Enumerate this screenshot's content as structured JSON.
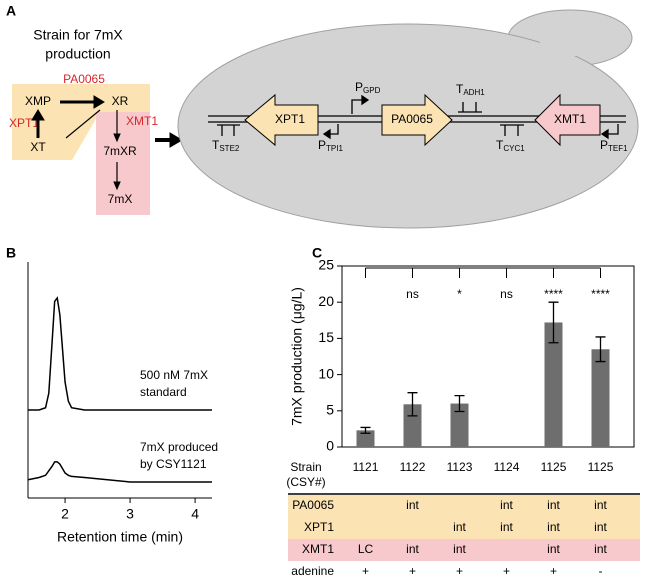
{
  "panel_labels": [
    "A",
    "B",
    "C"
  ],
  "panel_a": {
    "title": [
      "Strain for 7mX",
      "production"
    ],
    "metabolites": [
      "XMP",
      "XR",
      "XT",
      "7mXR",
      "7mX"
    ],
    "enzymes": [
      "PA0065",
      "XPT1",
      "XMT1"
    ],
    "genes": [
      "XPT1",
      "PA0065",
      "XMT1"
    ],
    "elements": [
      {
        "main": "T",
        "sub": "STE2"
      },
      {
        "main": "P",
        "sub": "TPI1"
      },
      {
        "main": "P",
        "sub": "GPD"
      },
      {
        "main": "T",
        "sub": "ADH1"
      },
      {
        "main": "T",
        "sub": "CYC1"
      },
      {
        "main": "P",
        "sub": "TEF1"
      }
    ]
  },
  "chart_data": [
    {
      "type": "line",
      "xlabel": "Retention time (min)",
      "x": [
        1.43,
        1.6,
        1.7,
        1.75,
        1.8,
        1.84,
        1.88,
        1.92,
        1.96,
        2.0,
        2.05,
        2.1,
        2.3,
        3,
        4.26
      ],
      "xlim": [
        1.43,
        4.26
      ],
      "xticks": [
        2,
        3,
        4
      ],
      "series": [
        {
          "name": [
            "500 nM 7mX",
            "standard"
          ],
          "color": "#000000",
          "values": [
            0,
            0,
            0.02,
            0.15,
            0.6,
            0.97,
            1.0,
            0.85,
            0.55,
            0.25,
            0.08,
            0.02,
            0,
            0,
            0
          ]
        },
        {
          "name": [
            "7mX produced",
            "by CSY1121"
          ],
          "color": "#000000",
          "values": [
            0.02,
            0.04,
            0.06,
            0.1,
            0.14,
            0.18,
            0.18,
            0.16,
            0.12,
            0.08,
            0.06,
            0.05,
            0.04,
            0,
            0
          ]
        }
      ]
    },
    {
      "type": "bar",
      "ylabel": "7mX production (μg/L)",
      "xlabel": [
        "Strain",
        "(CSY#)"
      ],
      "categories": [
        "1121",
        "1122",
        "1123",
        "1124",
        "1125",
        "1125"
      ],
      "values": [
        2.3,
        5.9,
        6.0,
        null,
        17.2,
        13.5
      ],
      "errors": [
        0.4,
        1.6,
        1.1,
        null,
        2.8,
        1.7
      ],
      "significance": [
        null,
        "ns",
        "*",
        "ns",
        "****",
        "****"
      ],
      "significance_color": "#d7262b",
      "color": "#6e6e6e",
      "ylim": [
        0,
        25
      ],
      "yticks": [
        0,
        5,
        10,
        15,
        20,
        25
      ],
      "table": [
        {
          "label": "PA0065",
          "color": "#fbe3b4",
          "cells": [
            null,
            "int",
            null,
            "int",
            "int",
            "int"
          ]
        },
        {
          "label": "XPT1",
          "color": "#fbe3b4",
          "cells": [
            null,
            null,
            "int",
            "int",
            "int",
            "int"
          ]
        },
        {
          "label": "XMT1",
          "color": "#f8c9cc",
          "cells": [
            "LC",
            "int",
            "int",
            null,
            "int",
            "int"
          ]
        },
        {
          "label": "adenine",
          "color": null,
          "cells": [
            "+",
            "+",
            "+",
            "+",
            "+",
            "-"
          ]
        }
      ]
    }
  ]
}
